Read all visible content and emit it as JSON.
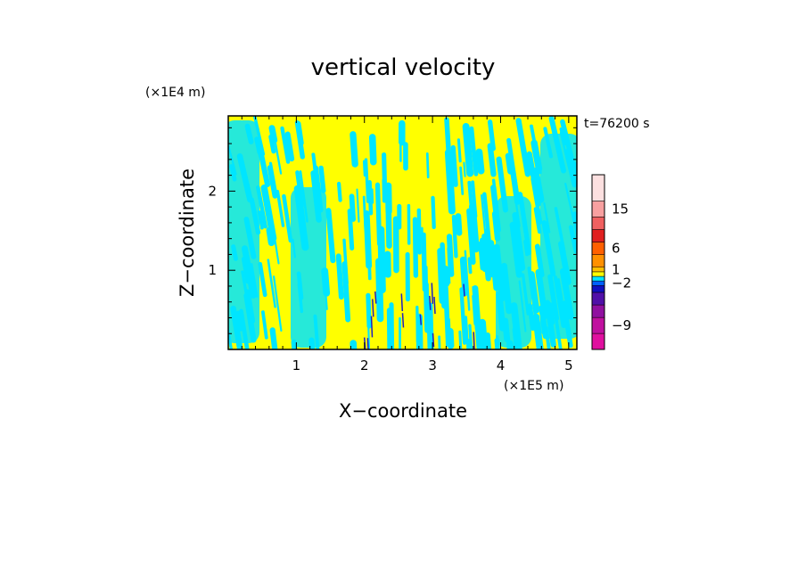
{
  "chart_data": {
    "type": "heatmap",
    "title": "vertical velocity",
    "xlabel": "X−coordinate",
    "ylabel": "Z−coordinate",
    "x_unit": "(×1E5 m)",
    "y_unit": "(×1E4 m)",
    "time_label": "t=76200 s",
    "xlim": [
      0,
      5.12
    ],
    "ylim": [
      0,
      2.95
    ],
    "x_ticks": [
      {
        "value": 1,
        "label": "1"
      },
      {
        "value": 2,
        "label": "2"
      },
      {
        "value": 3,
        "label": "3"
      },
      {
        "value": 4,
        "label": "4"
      },
      {
        "value": 5,
        "label": "5"
      }
    ],
    "y_ticks": [
      {
        "value": 1,
        "label": "1"
      },
      {
        "value": 2,
        "label": "2"
      }
    ],
    "field_colors": {
      "positive": "#ffff00",
      "negative": "#00e5ff",
      "strong_negative": "#2020c0"
    },
    "colorbar": {
      "levels": [
        {
          "color": "#e0109f"
        },
        {
          "color": "#c0109f"
        },
        {
          "color": "#9010a0"
        },
        {
          "color": "#5010a8"
        },
        {
          "color": "#1010c0"
        },
        {
          "color": "#0060ff"
        },
        {
          "color": "#00e5ff"
        },
        {
          "color": "#ffff00"
        },
        {
          "color": "#ffc000"
        },
        {
          "color": "#ff9000"
        },
        {
          "color": "#ff6000"
        },
        {
          "color": "#e02020"
        },
        {
          "color": "#f06060"
        },
        {
          "color": "#f8a0a0"
        },
        {
          "color": "#fce0e0"
        }
      ],
      "tick_labels": [
        {
          "label": "15",
          "level_index": 13
        },
        {
          "label": "6",
          "level_index": 10
        },
        {
          "label": "1",
          "level_index": 8
        },
        {
          "label": "−2",
          "level_index": 5
        },
        {
          "label": "−9",
          "level_index": 1
        }
      ]
    }
  }
}
